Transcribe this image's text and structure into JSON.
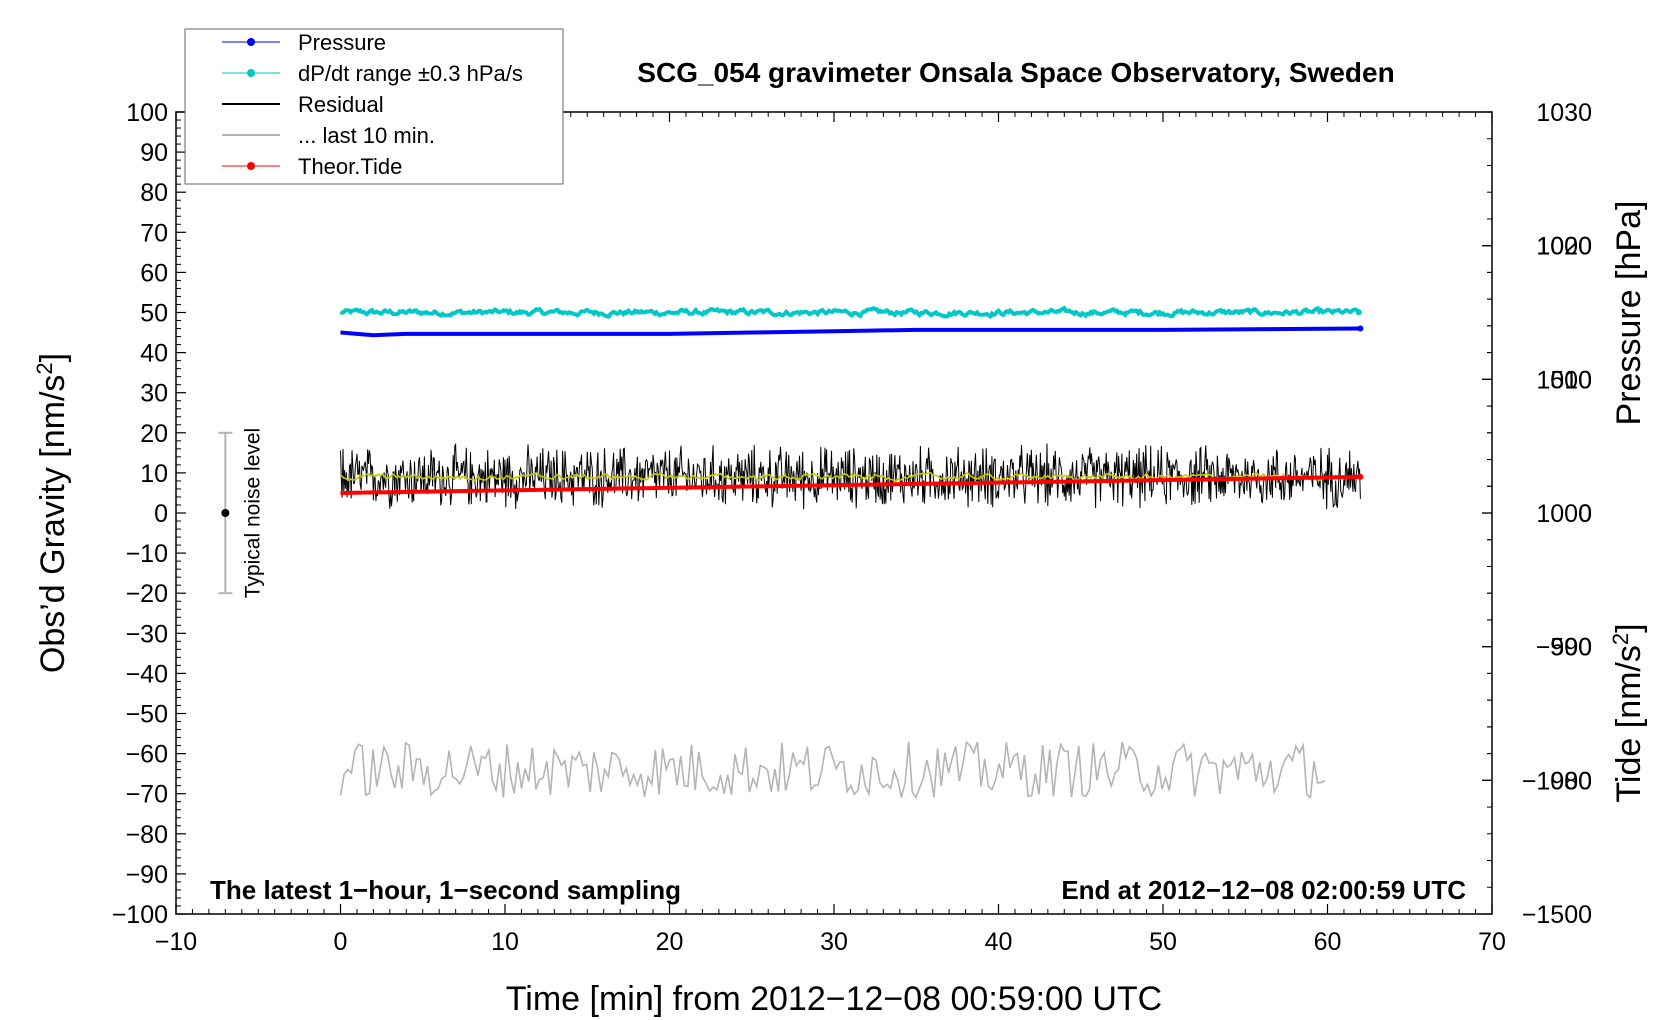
{
  "chart_data": {
    "type": "line",
    "title": "SCG_054 gravimeter Onsala Space Observatory, Sweden",
    "xlabel": "Time [min] from 2012−12−08 00:59:00 UTC",
    "ylabel_left_prefix": "Obs’d Gravity [nm/s",
    "ylabel_left_sup": "2",
    "ylabel_left_suffix": "]",
    "ylabel_right_top": "Pressure [hPa]",
    "ylabel_right_bottom_prefix": "Tide [nm/s",
    "ylabel_right_bottom_sup": "2",
    "ylabel_right_bottom_suffix": "]",
    "xlim": [
      -10,
      70
    ],
    "ylim": [
      -100,
      100
    ],
    "pressure_axis_ylim": [
      970,
      1030
    ],
    "tide_axis_ylim": [
      -1500,
      1500
    ],
    "x_ticks": [
      "−10",
      "0",
      "10",
      "20",
      "30",
      "40",
      "50",
      "60",
      "70"
    ],
    "x_tick_values": [
      -10,
      0,
      10,
      20,
      30,
      40,
      50,
      60,
      70
    ],
    "y_left_ticks": [
      "100",
      "90",
      "80",
      "70",
      "60",
      "50",
      "40",
      "30",
      "20",
      "10",
      "0",
      "−10",
      "−20",
      "−30",
      "−40",
      "−50",
      "−60",
      "−70",
      "−80",
      "−90",
      "−100"
    ],
    "y_left_tick_values": [
      100,
      90,
      80,
      70,
      60,
      50,
      40,
      30,
      20,
      10,
      0,
      -10,
      -20,
      -30,
      -40,
      -50,
      -60,
      -70,
      -80,
      -90,
      -100
    ],
    "y_right_pressure_ticks": [
      "1030",
      "1020",
      "1010",
      "1000",
      "990",
      "980"
    ],
    "y_right_pressure_values": [
      1030,
      1020,
      1010,
      1000,
      990,
      980
    ],
    "y_right_tide_ticks": [
      "1000",
      "500",
      "0",
      "−500",
      "−1000",
      "−1500"
    ],
    "y_right_tide_values": [
      1000,
      500,
      0,
      -500,
      -1000,
      -1500
    ],
    "legend": {
      "position": "top-left",
      "entries": [
        {
          "label": "Pressure",
          "color": "#0000ff",
          "marker": true
        },
        {
          "label": "dP/dt range ±0.3 hPa/s",
          "color": "#00c8c8",
          "marker": true
        },
        {
          "label": "Residual",
          "color": "#000000",
          "marker": false
        },
        {
          "label": "... last 10 min.",
          "color": "#b4b4b4",
          "marker": false
        },
        {
          "label": "Theor.Tide",
          "color": "#ff0000",
          "marker": true
        }
      ]
    },
    "series": [
      {
        "name": "Pressure",
        "color": "#0000ff",
        "axis": "pressure",
        "x": [
          0,
          2,
          4,
          10,
          20,
          25,
          30,
          35,
          40,
          50,
          62
        ],
        "y": [
          1013.5,
          1013.3,
          1013.4,
          1013.4,
          1013.4,
          1013.5,
          1013.6,
          1013.7,
          1013.7,
          1013.7,
          1013.8
        ]
      },
      {
        "name": "dP/dt range ±0.3 hPa/s",
        "color": "#00c8c8",
        "axis": "gravity",
        "x_range": [
          0,
          62
        ],
        "center": 50,
        "spread": 1
      },
      {
        "name": "Residual",
        "color": "#000000",
        "axis": "gravity",
        "x_range": [
          0,
          62
        ],
        "center": 9,
        "spread": 6
      },
      {
        "name": "Residual smoothed",
        "color": "#c8c800",
        "axis": "gravity",
        "x_range": [
          0,
          62
        ],
        "center": 9,
        "spread": 1
      },
      {
        "name": "... last 10 min.",
        "color": "#b4b4b4",
        "axis": "gravity",
        "x_range": [
          0,
          60
        ],
        "center": -64,
        "spread": 7
      },
      {
        "name": "Theor.Tide",
        "color": "#ff0000",
        "axis": "tide",
        "x": [
          0,
          62
        ],
        "y": [
          75,
          135
        ]
      }
    ],
    "noise_bar": {
      "label": "Typical noise level",
      "x": -7,
      "y": 0,
      "low": -20,
      "high": 20
    },
    "annotations": {
      "bottom_left": "The latest 1−hour, 1−second sampling",
      "bottom_right": "End at 2012−12−08 02:00:59 UTC"
    }
  }
}
